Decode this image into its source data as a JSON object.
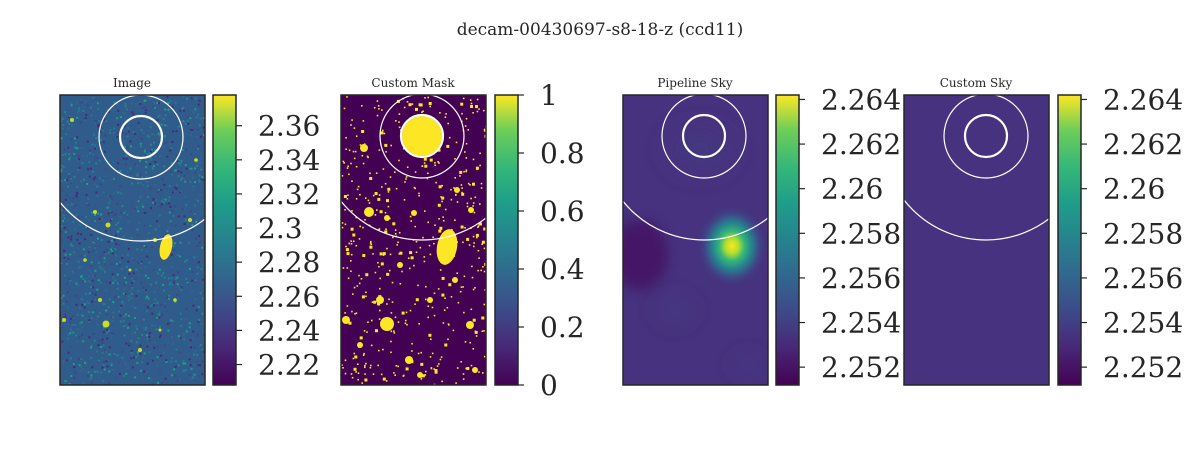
{
  "figure": {
    "title": "decam-00430697-s8-18-z (ccd11)"
  },
  "chart_data": [
    {
      "type": "heatmap",
      "title": "Image",
      "colormap": "viridis",
      "colorbar": {
        "min": 2.208,
        "max": 2.378,
        "ticks": [
          2.22,
          2.24,
          2.26,
          2.28,
          2.3,
          2.32,
          2.34,
          2.36
        ],
        "tick_labels": [
          "2.22",
          "2.24",
          "2.26",
          "2.28",
          "2.3",
          "2.32",
          "2.34",
          "2.36"
        ]
      },
      "content": "noisy sky image with scattered point sources and one bright elongated source",
      "overlay_circles": [
        "inner circle",
        "outer circle",
        "large arc"
      ]
    },
    {
      "type": "heatmap",
      "title": "Custom Mask",
      "colormap": "viridis",
      "colorbar": {
        "min": 0,
        "max": 1,
        "ticks": [
          0,
          0.2,
          0.4,
          0.6,
          0.8,
          1
        ],
        "tick_labels": [
          "0",
          "0.2",
          "0.4",
          "0.6",
          "0.8",
          "1"
        ]
      },
      "content": "binary mask (0 background, 1 masked pixels)",
      "overlay_circles": [
        "inner circle",
        "outer circle",
        "large arc"
      ]
    },
    {
      "type": "heatmap",
      "title": "Pipeline Sky",
      "colormap": "viridis",
      "colorbar": {
        "min": 2.2512,
        "max": 2.2642,
        "ticks": [
          2.252,
          2.254,
          2.256,
          2.258,
          2.26,
          2.262,
          2.264
        ],
        "tick_labels": [
          "2.252",
          "2.254",
          "2.256",
          "2.258",
          "2.26",
          "2.262",
          "2.264"
        ]
      },
      "content": "smooth sky model with a bright blob near the elongated source",
      "overlay_circles": [
        "inner circle",
        "outer circle",
        "large arc"
      ]
    },
    {
      "type": "heatmap",
      "title": "Custom Sky",
      "colormap": "viridis",
      "colorbar": {
        "min": 2.2512,
        "max": 2.2642,
        "ticks": [
          2.252,
          2.254,
          2.256,
          2.258,
          2.26,
          2.262,
          2.264
        ],
        "tick_labels": [
          "2.252",
          "2.254",
          "2.256",
          "2.258",
          "2.26",
          "2.262",
          "2.264"
        ]
      },
      "content": "uniform constant sky level",
      "constant_value": 2.2525,
      "overlay_circles": [
        "inner circle",
        "outer circle",
        "large arc"
      ]
    }
  ],
  "colors": {
    "viridis_low": "#440154",
    "viridis_mid": "#21918c",
    "viridis_high": "#fde725",
    "custom_sky_fill": "#46327e",
    "frame": "#262626",
    "overlay": "#ffffff"
  }
}
